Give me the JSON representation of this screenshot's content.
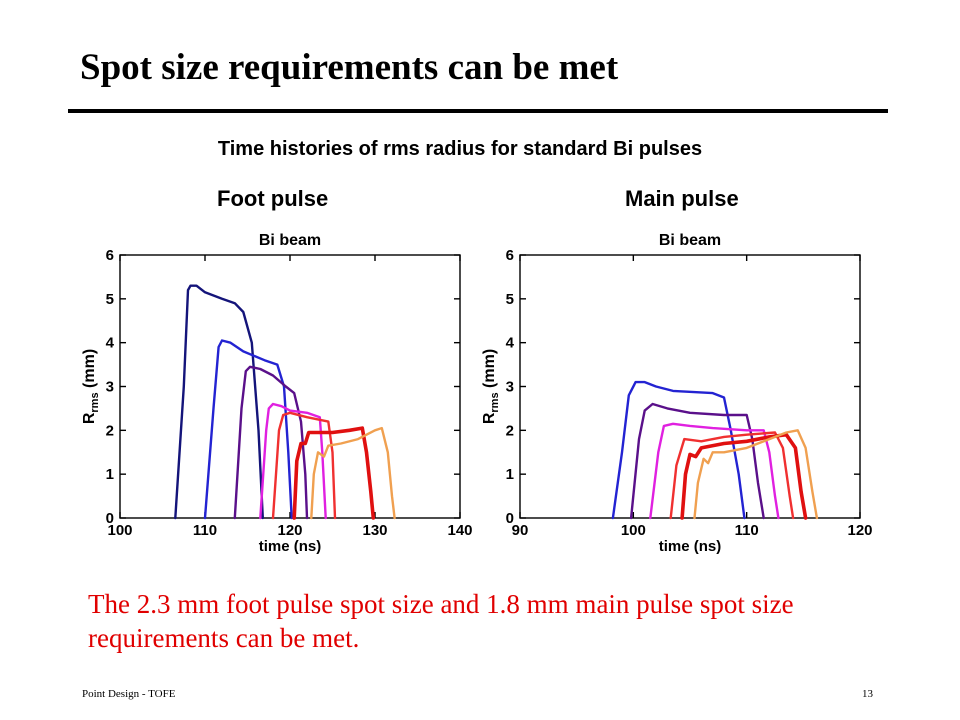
{
  "slide": {
    "title": "Spot size requirements can be met",
    "subtitle": "Time histories of rms radius for standard Bi pulses",
    "caption": "The 2.3 mm foot pulse spot size and 1.8 mm main pulse spot size requirements can be met.",
    "footer_left": "Point Design - TOFE",
    "page_number": "13"
  },
  "panels": {
    "foot_label": "Foot pulse",
    "main_label": "Main pulse"
  },
  "chart_data": [
    {
      "type": "line",
      "panel": "Foot pulse",
      "title": "Bi beam",
      "xlabel": "time (ns)",
      "ylabel_main": "R",
      "ylabel_sub": "rms",
      "ylabel_unit": " (mm)",
      "xlim": [
        100,
        140
      ],
      "ylim": [
        0,
        6
      ],
      "xticks": [
        100,
        110,
        120,
        130,
        140
      ],
      "yticks": [
        0,
        1,
        2,
        3,
        4,
        5,
        6
      ],
      "grid": false,
      "series": [
        {
          "color": "#14147a",
          "points": [
            [
              106.5,
              0
            ],
            [
              107.5,
              3
            ],
            [
              108,
              5.2
            ],
            [
              108.3,
              5.3
            ],
            [
              109,
              5.3
            ],
            [
              110,
              5.15
            ],
            [
              112,
              5.0
            ],
            [
              113.5,
              4.9
            ],
            [
              114.5,
              4.7
            ],
            [
              115.5,
              4.0
            ],
            [
              116.3,
              2.0
            ],
            [
              116.8,
              0
            ]
          ]
        },
        {
          "color": "#2323d2",
          "points": [
            [
              110,
              0
            ],
            [
              111,
              2.5
            ],
            [
              111.6,
              3.9
            ],
            [
              112,
              4.05
            ],
            [
              113,
              4.0
            ],
            [
              114.5,
              3.8
            ],
            [
              117,
              3.6
            ],
            [
              118.5,
              3.5
            ],
            [
              119.3,
              3.0
            ],
            [
              119.8,
              1.5
            ],
            [
              120.2,
              0
            ]
          ]
        },
        {
          "color": "#5a108a",
          "points": [
            [
              113.5,
              0
            ],
            [
              114.3,
              2.5
            ],
            [
              114.8,
              3.35
            ],
            [
              115.3,
              3.45
            ],
            [
              116.5,
              3.4
            ],
            [
              118,
              3.25
            ],
            [
              119.5,
              3.0
            ],
            [
              120.5,
              2.85
            ],
            [
              121.3,
              2.2
            ],
            [
              121.8,
              1.0
            ],
            [
              122,
              0
            ]
          ]
        },
        {
          "color": "#e020e0",
          "points": [
            [
              116.5,
              0
            ],
            [
              117.2,
              2.0
            ],
            [
              117.5,
              2.5
            ],
            [
              118,
              2.6
            ],
            [
              119,
              2.55
            ],
            [
              120,
              2.45
            ],
            [
              122,
              2.4
            ],
            [
              123.5,
              2.3
            ],
            [
              123.8,
              1.5
            ],
            [
              124.2,
              0
            ]
          ]
        },
        {
          "color": "#f03030",
          "points": [
            [
              118,
              0
            ],
            [
              118.7,
              2.0
            ],
            [
              119.2,
              2.35
            ],
            [
              120,
              2.4
            ],
            [
              122,
              2.3
            ],
            [
              124.5,
              2.2
            ],
            [
              125,
              1.5
            ],
            [
              125.3,
              0
            ]
          ]
        },
        {
          "color": "#e01010",
          "width": 3.6,
          "points": [
            [
              120.5,
              0
            ],
            [
              120.8,
              1.3
            ],
            [
              121.3,
              1.7
            ],
            [
              121.8,
              1.7
            ],
            [
              122.2,
              1.95
            ],
            [
              123,
              1.95
            ],
            [
              125,
              1.95
            ],
            [
              127,
              2.0
            ],
            [
              128.5,
              2.05
            ],
            [
              129,
              1.5
            ],
            [
              129.5,
              0.6
            ],
            [
              129.8,
              0
            ]
          ]
        },
        {
          "color": "#f0a050",
          "points": [
            [
              122.5,
              0
            ],
            [
              122.8,
              1.0
            ],
            [
              123.3,
              1.5
            ],
            [
              124,
              1.4
            ],
            [
              124.5,
              1.65
            ],
            [
              126,
              1.7
            ],
            [
              128,
              1.8
            ],
            [
              130,
              2.0
            ],
            [
              130.8,
              2.05
            ],
            [
              131.5,
              1.5
            ],
            [
              132,
              0.5
            ],
            [
              132.3,
              0
            ]
          ]
        }
      ]
    },
    {
      "type": "line",
      "panel": "Main pulse",
      "title": "Bi beam",
      "xlabel": "time (ns)",
      "ylabel_main": "R",
      "ylabel_sub": "rms",
      "ylabel_unit": " (mm)",
      "xlim": [
        90,
        120
      ],
      "ylim": [
        0,
        6
      ],
      "xticks": [
        90,
        100,
        110,
        120
      ],
      "yticks": [
        0,
        1,
        2,
        3,
        4,
        5,
        6
      ],
      "grid": false,
      "series": [
        {
          "color": "#2323d2",
          "points": [
            [
              98.2,
              0
            ],
            [
              99,
              1.5
            ],
            [
              99.6,
              2.8
            ],
            [
              100.2,
              3.1
            ],
            [
              101,
              3.1
            ],
            [
              102,
              3.0
            ],
            [
              103.5,
              2.9
            ],
            [
              107,
              2.85
            ],
            [
              108,
              2.75
            ],
            [
              108.6,
              2.0
            ],
            [
              109.3,
              1.0
            ],
            [
              109.8,
              0
            ]
          ]
        },
        {
          "color": "#5a108a",
          "points": [
            [
              99.8,
              0
            ],
            [
              100.5,
              1.8
            ],
            [
              101,
              2.45
            ],
            [
              101.7,
              2.6
            ],
            [
              103,
              2.5
            ],
            [
              105,
              2.4
            ],
            [
              108,
              2.35
            ],
            [
              110,
              2.35
            ],
            [
              110.5,
              1.8
            ],
            [
              111,
              0.8
            ],
            [
              111.5,
              0
            ]
          ]
        },
        {
          "color": "#e020e0",
          "points": [
            [
              101.5,
              0
            ],
            [
              102.2,
              1.5
            ],
            [
              102.7,
              2.1
            ],
            [
              103.5,
              2.15
            ],
            [
              105,
              2.1
            ],
            [
              107,
              2.05
            ],
            [
              110,
              2.0
            ],
            [
              111.5,
              2.0
            ],
            [
              112,
              1.5
            ],
            [
              112.5,
              0.5
            ],
            [
              112.8,
              0
            ]
          ]
        },
        {
          "color": "#f03030",
          "points": [
            [
              103.3,
              0
            ],
            [
              103.8,
              1.2
            ],
            [
              104.5,
              1.8
            ],
            [
              106,
              1.75
            ],
            [
              108,
              1.85
            ],
            [
              110,
              1.9
            ],
            [
              112.5,
              1.95
            ],
            [
              113.2,
              1.6
            ],
            [
              113.8,
              0.5
            ],
            [
              114.1,
              0
            ]
          ]
        },
        {
          "color": "#e01010",
          "width": 3.6,
          "points": [
            [
              104.3,
              0
            ],
            [
              104.6,
              1.0
            ],
            [
              105,
              1.45
            ],
            [
              105.5,
              1.4
            ],
            [
              106,
              1.6
            ],
            [
              108,
              1.7
            ],
            [
              110,
              1.75
            ],
            [
              112,
              1.85
            ],
            [
              113.5,
              1.9
            ],
            [
              114.3,
              1.6
            ],
            [
              114.8,
              0.6
            ],
            [
              115.2,
              0
            ]
          ]
        },
        {
          "color": "#f0a050",
          "points": [
            [
              105.4,
              0
            ],
            [
              105.7,
              0.8
            ],
            [
              106.2,
              1.35
            ],
            [
              106.6,
              1.25
            ],
            [
              107,
              1.5
            ],
            [
              108,
              1.5
            ],
            [
              110,
              1.6
            ],
            [
              112,
              1.8
            ],
            [
              113.5,
              1.95
            ],
            [
              114.5,
              2.0
            ],
            [
              115.2,
              1.6
            ],
            [
              115.8,
              0.6
            ],
            [
              116.2,
              0
            ]
          ]
        }
      ]
    }
  ]
}
